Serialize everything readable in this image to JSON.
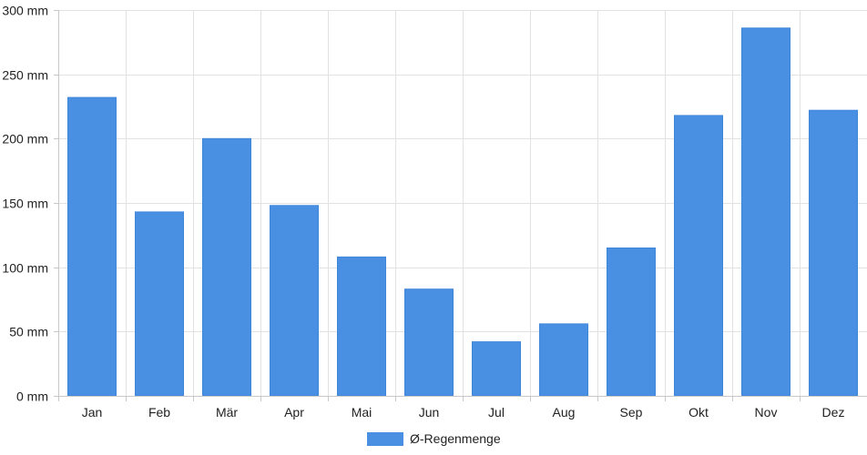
{
  "chart_data": {
    "type": "bar",
    "categories": [
      "Jan",
      "Feb",
      "Mär",
      "Apr",
      "Mai",
      "Jun",
      "Jul",
      "Aug",
      "Sep",
      "Okt",
      "Nov",
      "Dez"
    ],
    "series": [
      {
        "name": "Ø-Regenmenge",
        "values": [
          232,
          143,
          200,
          148,
          108,
          83,
          42,
          56,
          115,
          218,
          286,
          222
        ],
        "color": "#4a90e2"
      }
    ],
    "y_unit": "mm",
    "ylim": [
      0,
      300
    ],
    "y_ticks": [
      0,
      50,
      100,
      150,
      200,
      250,
      300
    ],
    "y_tick_labels": [
      "0 mm",
      "50 mm",
      "100 mm",
      "150 mm",
      "200 mm",
      "250 mm",
      "300 mm"
    ],
    "grid": true,
    "legend_position": "bottom-center"
  }
}
